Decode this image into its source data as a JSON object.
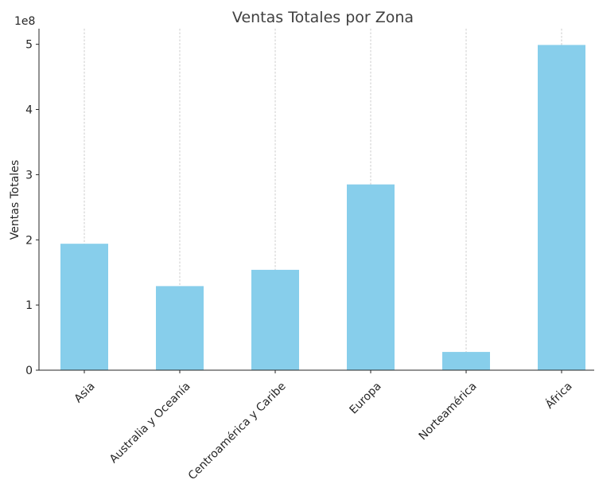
{
  "chart_data": {
    "type": "bar",
    "title": "Ventas Totales por Zona",
    "xlabel": "",
    "ylabel": "Ventas Totales",
    "y_offset_label": "1e8",
    "categories": [
      "Asia",
      "Australia y Oceanía",
      "Centroamérica y Caribe",
      "Europa",
      "Norteamérica",
      "África"
    ],
    "values": [
      194000000,
      129000000,
      154000000,
      285000000,
      28000000,
      499000000
    ],
    "yticks": [
      0,
      1,
      2,
      3,
      4,
      5
    ],
    "ytick_labels": [
      "0",
      "1",
      "2",
      "3",
      "4",
      "5"
    ],
    "ylim": [
      0,
      524000000
    ],
    "ytick_scale": 100000000,
    "grid": "vertical dashed on x categories",
    "bar_color": "#87CEEB",
    "legend": "none"
  }
}
